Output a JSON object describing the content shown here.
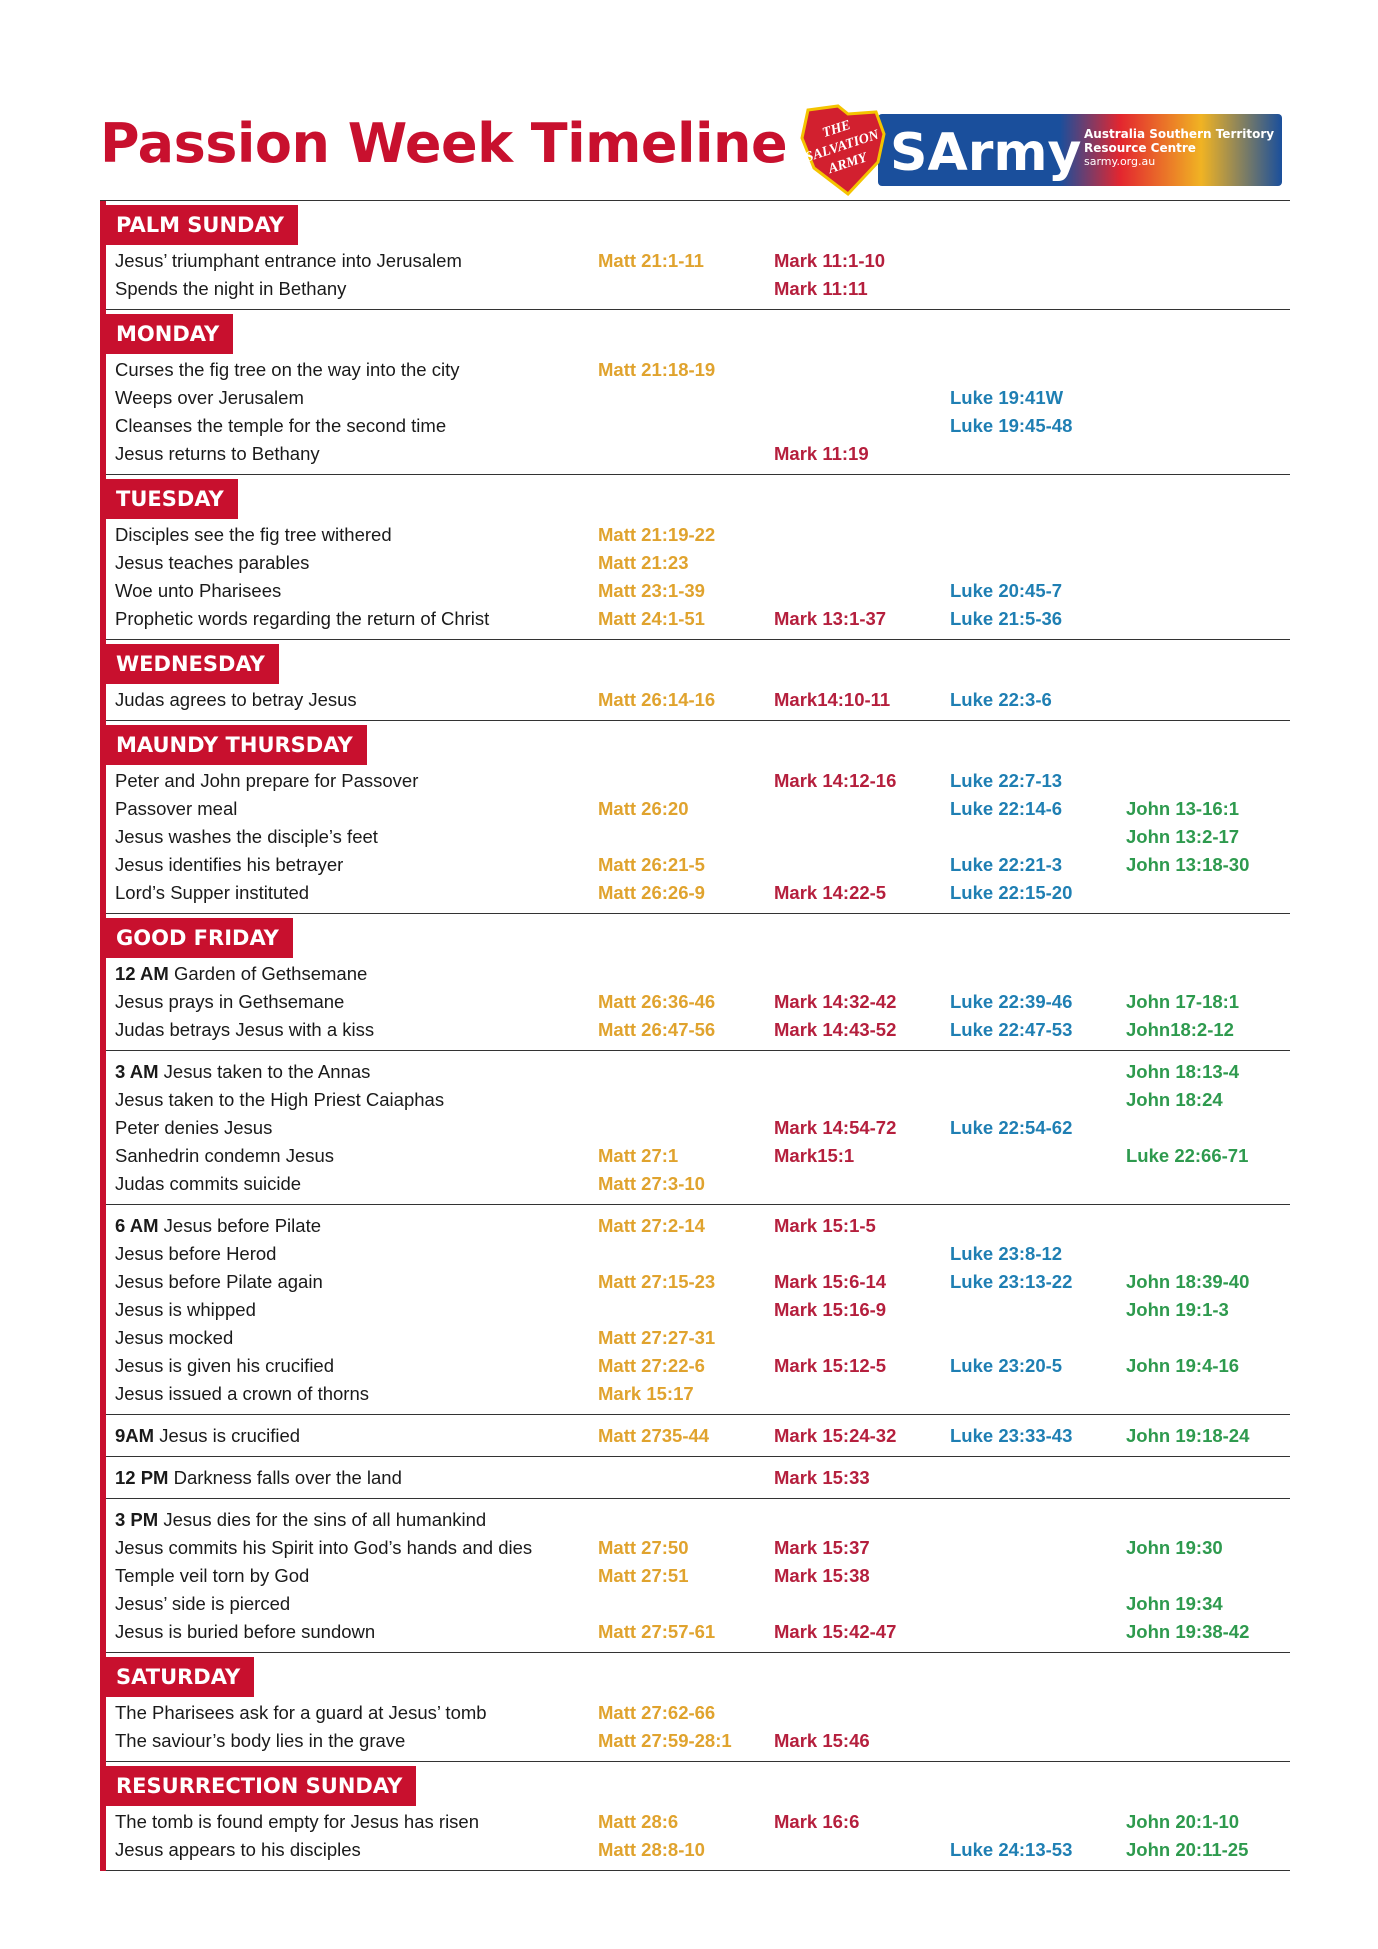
{
  "header": {
    "title": "Passion Week Timeline",
    "logo": {
      "shield": [
        "THE",
        "SALVATION",
        "ARMY"
      ],
      "brand": "SArmy",
      "line1": "Australia Southern Territory",
      "line2": "Resource Centre",
      "url": "sarmy.org.au"
    }
  },
  "sections": [
    {
      "heading": "PALM SUNDAY",
      "groups": [
        {
          "rows": [
            {
              "text": "Jesus’ triumphant entrance into Jerusalem",
              "refs": [
                "Matt 21:1-11",
                "Mark 11:1-10",
                null,
                null
              ]
            },
            {
              "text": "Spends the night in Bethany",
              "refs": [
                null,
                "Mark 11:11",
                null,
                null
              ]
            }
          ]
        }
      ]
    },
    {
      "heading": "MONDAY",
      "groups": [
        {
          "rows": [
            {
              "text": "Curses the fig tree on the way into the city",
              "refs": [
                "Matt 21:18-19",
                null,
                null,
                null
              ]
            },
            {
              "text": "Weeps over Jerusalem",
              "refs": [
                null,
                null,
                "Luke 19:41W",
                null
              ]
            },
            {
              "text": "Cleanses the temple for the second time",
              "refs": [
                null,
                null,
                "Luke 19:45-48",
                null
              ]
            },
            {
              "text": "Jesus returns to Bethany",
              "refs": [
                null,
                "Mark 11:19",
                null,
                null
              ]
            }
          ]
        }
      ]
    },
    {
      "heading": "TUESDAY",
      "groups": [
        {
          "rows": [
            {
              "text": "Disciples see the fig tree withered",
              "refs": [
                "Matt 21:19-22",
                null,
                null,
                null
              ]
            },
            {
              "text": "Jesus teaches parables",
              "refs": [
                "Matt 21:23",
                null,
                null,
                null
              ]
            },
            {
              "text": "Woe unto Pharisees",
              "refs": [
                "Matt 23:1-39",
                null,
                "Luke 20:45-7",
                null
              ]
            },
            {
              "text": "Prophetic words regarding the return of Christ",
              "refs": [
                "Matt 24:1-51",
                "Mark 13:1-37",
                "Luke 21:5-36",
                null
              ]
            }
          ]
        }
      ]
    },
    {
      "heading": "WEDNESDAY",
      "groups": [
        {
          "rows": [
            {
              "text": "Judas agrees to betray Jesus",
              "refs": [
                "Matt 26:14-16",
                "Mark14:10-11",
                "Luke 22:3-6",
                null
              ]
            }
          ]
        }
      ]
    },
    {
      "heading": "MAUNDY THURSDAY",
      "groups": [
        {
          "rows": [
            {
              "text": "Peter and John prepare for Passover",
              "refs": [
                null,
                "Mark 14:12-16",
                "Luke 22:7-13",
                null
              ]
            },
            {
              "text": "Passover meal",
              "refs": [
                "Matt 26:20",
                null,
                "Luke 22:14-6",
                "John 13-16:1"
              ]
            },
            {
              "text": "Jesus washes the disciple’s feet",
              "refs": [
                null,
                null,
                null,
                "John 13:2-17"
              ]
            },
            {
              "text": "Jesus identifies his betrayer",
              "refs": [
                "Matt 26:21-5",
                null,
                "Luke 22:21-3",
                "John 13:18-30"
              ]
            },
            {
              "text": "Lord’s Supper instituted",
              "refs": [
                "Matt 26:26-9",
                "Mark 14:22-5",
                "Luke 22:15-20",
                null
              ]
            }
          ]
        }
      ]
    },
    {
      "heading": "GOOD FRIDAY",
      "groups": [
        {
          "rows": [
            {
              "time": "12 AM",
              "text": "Garden of Gethsemane",
              "refs": [
                null,
                null,
                null,
                null
              ]
            },
            {
              "text": "Jesus prays in Gethsemane",
              "refs": [
                "Matt 26:36-46",
                "Mark 14:32-42",
                "Luke 22:39-46",
                "John 17-18:1"
              ]
            },
            {
              "text": "Judas betrays Jesus with a kiss",
              "refs": [
                "Matt 26:47-56",
                "Mark 14:43-52",
                "Luke 22:47-53",
                "John18:2-12"
              ]
            }
          ]
        },
        {
          "rows": [
            {
              "time": "3 AM",
              "text": "Jesus taken to the Annas",
              "refs": [
                null,
                null,
                null,
                "John 18:13-4"
              ]
            },
            {
              "text": "Jesus taken to the High Priest Caiaphas",
              "refs": [
                null,
                null,
                null,
                "John 18:24"
              ]
            },
            {
              "text": "Peter denies Jesus",
              "refs": [
                null,
                "Mark 14:54-72",
                "Luke 22:54-62",
                null
              ]
            },
            {
              "text": "Sanhedrin condemn Jesus",
              "refs": [
                "Matt 27:1",
                "Mark15:1",
                null,
                "Luke 22:66-71"
              ]
            },
            {
              "text": "Judas commits suicide",
              "refs": [
                "Matt 27:3-10",
                null,
                null,
                null
              ]
            }
          ]
        },
        {
          "rows": [
            {
              "time": "6 AM",
              "text": "Jesus before Pilate",
              "refs": [
                "Matt 27:2-14",
                "Mark 15:1-5",
                null,
                null
              ]
            },
            {
              "text": "Jesus before Herod",
              "refs": [
                null,
                null,
                "Luke 23:8-12",
                null
              ]
            },
            {
              "text": "Jesus before Pilate again",
              "refs": [
                "Matt 27:15-23",
                "Mark 15:6-14",
                "Luke 23:13-22",
                "John 18:39-40"
              ]
            },
            {
              "text": "Jesus is whipped",
              "refs": [
                null,
                "Mark 15:16-9",
                null,
                "John 19:1-3"
              ]
            },
            {
              "text": "Jesus mocked",
              "refs": [
                "Matt 27:27-31",
                null,
                null,
                null
              ]
            },
            {
              "text": "Jesus is given his crucified",
              "refs": [
                "Matt 27:22-6",
                "Mark 15:12-5",
                "Luke 23:20-5",
                "John 19:4-16"
              ]
            },
            {
              "text": "Jesus issued a crown of thorns",
              "refs": [
                "Mark 15:17",
                null,
                null,
                null
              ]
            }
          ]
        },
        {
          "rows": [
            {
              "time": "9AM",
              "text": "Jesus is crucified",
              "refs": [
                "Matt 2735-44",
                "Mark 15:24-32",
                "Luke 23:33-43",
                "John 19:18-24"
              ]
            }
          ]
        },
        {
          "rows": [
            {
              "time": "12 PM",
              "text": "Darkness falls over the land",
              "refs": [
                null,
                "Mark 15:33",
                null,
                null
              ]
            }
          ]
        },
        {
          "rows": [
            {
              "time": "3 PM",
              "text": "Jesus dies for the sins of all humankind",
              "refs": [
                null,
                null,
                null,
                null
              ]
            },
            {
              "text": "Jesus commits his Spirit into God’s hands and dies",
              "refs": [
                "Matt 27:50",
                "Mark 15:37",
                null,
                "John 19:30"
              ]
            },
            {
              "text": "Temple veil torn by God",
              "refs": [
                "Matt 27:51",
                "Mark 15:38",
                null,
                null
              ]
            },
            {
              "text": "Jesus’ side is pierced",
              "refs": [
                null,
                null,
                null,
                "John 19:34"
              ]
            },
            {
              "text": "Jesus is buried before sundown",
              "refs": [
                "Matt 27:57-61",
                "Mark 15:42-47",
                null,
                "John 19:38-42"
              ]
            }
          ]
        }
      ]
    },
    {
      "heading": "SATURDAY",
      "groups": [
        {
          "rows": [
            {
              "text": "The Pharisees ask for a guard at Jesus’ tomb",
              "refs": [
                "Matt 27:62-66",
                null,
                null,
                null
              ]
            },
            {
              "text": "The saviour’s body lies in the grave",
              "refs": [
                "Matt 27:59-28:1",
                "Mark 15:46",
                null,
                null
              ]
            }
          ]
        }
      ]
    },
    {
      "heading": "RESURRECTION SUNDAY",
      "groups": [
        {
          "rows": [
            {
              "text": "The tomb is found empty for Jesus has risen",
              "refs": [
                "Matt 28:6",
                "Mark 16:6",
                null,
                "John 20:1-10"
              ]
            },
            {
              "text": "Jesus appears to his disciples",
              "refs": [
                "Matt 28:8-10",
                null,
                "Luke 24:13-53",
                "John 20:11-25"
              ]
            }
          ]
        }
      ]
    }
  ]
}
